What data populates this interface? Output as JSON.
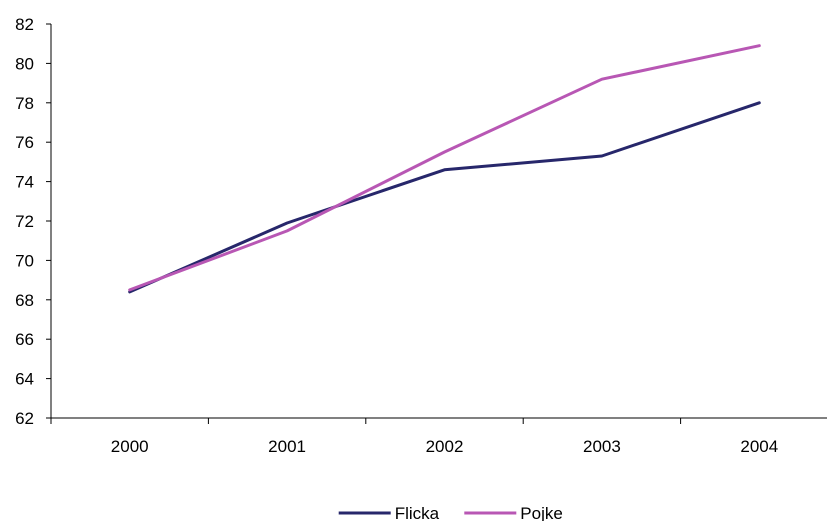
{
  "chart_data": {
    "type": "line",
    "title": "",
    "xlabel": "",
    "ylabel": "",
    "categories": [
      "2000",
      "2001",
      "2002",
      "2003",
      "2004"
    ],
    "ylim": [
      62,
      82
    ],
    "yticks": [
      62,
      64,
      66,
      68,
      70,
      72,
      74,
      76,
      78,
      80,
      82
    ],
    "grid": false,
    "legend_position": "bottom-center",
    "series": [
      {
        "name": "Flicka",
        "color": "#27276b",
        "values": [
          68.4,
          71.9,
          74.6,
          75.3,
          78.0
        ]
      },
      {
        "name": "Pojke",
        "color": "#b857b4",
        "values": [
          68.5,
          71.5,
          75.5,
          79.2,
          80.9
        ]
      }
    ]
  }
}
